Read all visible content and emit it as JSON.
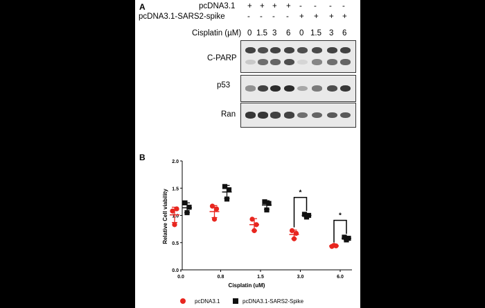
{
  "panel_a": {
    "letter": "A",
    "rows": [
      {
        "label": "pcDNA3.1",
        "marks": [
          "+",
          "+",
          "+",
          "+",
          "-",
          "-",
          "-",
          "-"
        ]
      },
      {
        "label": "pcDNA3.1-SARS2-spike",
        "marks": [
          "-",
          "-",
          "-",
          "-",
          "+",
          "+",
          "+",
          "+"
        ]
      }
    ],
    "cisplatin_label": "Cisplatin (µM)",
    "doses": [
      "0",
      "1.5",
      "3",
      "6",
      "0",
      "1.5",
      "3",
      "6"
    ],
    "blots": [
      {
        "label": "C-PARP",
        "bands": [
          [
            0.75,
            0.7,
            0.75,
            0.75,
            0.7,
            0.72,
            0.75,
            0.75
          ],
          [
            0.15,
            0.55,
            0.6,
            0.7,
            0.1,
            0.45,
            0.55,
            0.6
          ]
        ]
      },
      {
        "label": "p53",
        "bands": [
          [
            0.4,
            0.75,
            0.85,
            0.85,
            0.3,
            0.5,
            0.7,
            0.8
          ]
        ]
      },
      {
        "label": "Ran",
        "bands": [
          [
            0.8,
            0.8,
            0.75,
            0.75,
            0.55,
            0.6,
            0.65,
            0.65
          ]
        ]
      }
    ]
  },
  "panel_b": {
    "letter": "B",
    "chart_data": {
      "type": "scatter",
      "xlabel": "Cisplatin (uM)",
      "ylabel": "Relative Cell viability",
      "categories": [
        "0.0",
        "0.8",
        "1.5",
        "3.0",
        "6.0"
      ],
      "ylim": [
        0,
        2.0
      ],
      "yticks": [
        "0.0",
        "0.5",
        "1.0",
        "1.5",
        "2.0"
      ],
      "series": [
        {
          "name": "pcDNA3.1",
          "color": "#e8261f",
          "marker": "circle",
          "points": [
            [
              1.08,
              1.12,
              0.83
            ],
            [
              1.17,
              1.12,
              0.93
            ],
            [
              0.93,
              0.83,
              0.72
            ],
            [
              0.72,
              0.67,
              0.57
            ],
            [
              0.43,
              0.44,
              0.45
            ]
          ],
          "mean": [
            1.01,
            1.07,
            0.83,
            0.65,
            0.44
          ],
          "sd": [
            0.14,
            0.11,
            0.11,
            0.08,
            0.01
          ]
        },
        {
          "name": "pcDNA3.1-SARS2-Spike",
          "color": "#111111",
          "marker": "square",
          "points": [
            [
              1.23,
              1.15,
              1.05
            ],
            [
              1.53,
              1.47,
              1.3
            ],
            [
              1.25,
              1.22,
              1.1
            ],
            [
              1.02,
              1.0,
              0.97
            ],
            [
              0.6,
              0.58,
              0.55
            ]
          ],
          "mean": [
            1.14,
            1.43,
            1.19,
            1.0,
            0.58
          ],
          "sd": [
            0.09,
            0.12,
            0.08,
            0.03,
            0.03
          ]
        }
      ],
      "significance": [
        {
          "category": "3.0",
          "label": "*"
        },
        {
          "category": "6.0",
          "label": "*"
        }
      ],
      "legend_position": "bottom"
    }
  }
}
